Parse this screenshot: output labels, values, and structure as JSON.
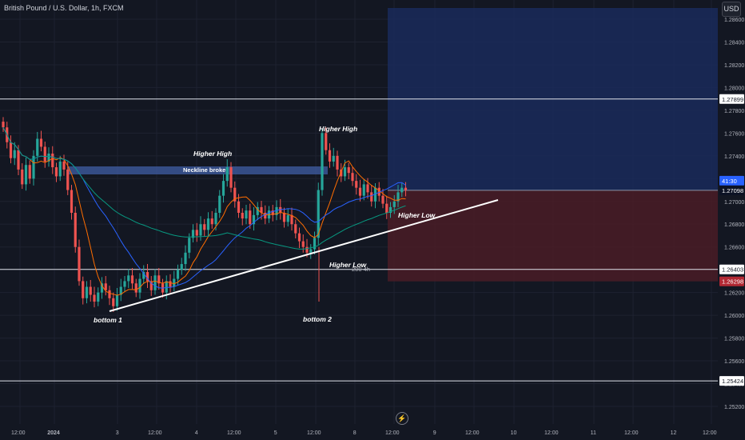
{
  "header": {
    "symbol_title": "British Pound / U.S. Dollar, 1h, FXCM"
  },
  "currency_label": "USD",
  "lightning_icon": "lightning-icon",
  "colors": {
    "background": "#131722",
    "up_candle": "#26a69a",
    "down_candle": "#ef5350",
    "ma_blue": "#2962ff",
    "ma_orange": "#ff6d00",
    "ma_teal": "#089981",
    "target_zone": "#1a2a5a",
    "stop_zone": "#4a1c26",
    "trendline": "#ffffff"
  },
  "chart_data": {
    "type": "candlestick",
    "ylim": [
      1.252,
      1.287
    ],
    "y_ticks": [
      "1.28600",
      "1.28400",
      "1.28200",
      "1.28000",
      "1.27800",
      "1.27600",
      "1.27400",
      "1.27200",
      "1.27000",
      "1.26800",
      "1.26600",
      "1.26400",
      "1.26200",
      "1.26000",
      "1.25800",
      "1.25600",
      "1.25400",
      "1.25200"
    ],
    "x_ticks": [
      "12:00",
      "2024",
      "3",
      "12:00",
      "4",
      "12:00",
      "5",
      "12:00",
      "8",
      "12:00",
      "9",
      "12:00",
      "10",
      "12:00",
      "11",
      "12:00",
      "12",
      "12:00"
    ],
    "horizontal_levels": [
      {
        "price": 1.27899,
        "label": "1.27899"
      },
      {
        "price": 1.26403,
        "label": "1.26403"
      },
      {
        "price": 1.25424,
        "label": "1.25424"
      }
    ],
    "current_price": {
      "price": 1.27098,
      "label": "1.27098",
      "countdown": "41:30"
    },
    "stop_price": {
      "price": 1.26298,
      "label": "1.26298"
    },
    "annotations": {
      "higher_high_1": "Higher High",
      "higher_high_2": "Higher High",
      "neckline": "Neckline broke",
      "higher_low_1": "Higher Low",
      "higher_low_2": "Higher Low",
      "bottom_1": "bottom 1",
      "bottom_2": "bottom 2",
      "ma_label": "200 4h"
    },
    "candles_close": [
      1.2765,
      1.2752,
      1.2738,
      1.2745,
      1.2728,
      1.2715,
      1.2732,
      1.272,
      1.274,
      1.2755,
      1.2748,
      1.2735,
      1.2742,
      1.273,
      1.2722,
      1.2735,
      1.2728,
      1.271,
      1.269,
      1.266,
      1.263,
      1.2615,
      1.2625,
      1.2618,
      1.2612,
      1.262,
      1.2628,
      1.2622,
      1.2615,
      1.2608,
      1.2618,
      1.2625,
      1.263,
      1.2635,
      1.2628,
      1.262,
      1.2632,
      1.2638,
      1.263,
      1.2622,
      1.2635,
      1.2628,
      1.262,
      1.263,
      1.2625,
      1.2632,
      1.264,
      1.2645,
      1.2655,
      1.2668,
      1.2675,
      1.267,
      1.268,
      1.2675,
      1.2685,
      1.268,
      1.269,
      1.2705,
      1.2718,
      1.273,
      1.2712,
      1.27,
      1.269,
      1.2685,
      1.2692,
      1.268,
      1.2688,
      1.2695,
      1.269,
      1.2685,
      1.2692,
      1.2688,
      1.2695,
      1.269,
      1.2682,
      1.2688,
      1.268,
      1.2672,
      1.2665,
      1.266,
      1.2655,
      1.2658,
      1.2668,
      1.271,
      1.276,
      1.2745,
      1.2735,
      1.274,
      1.2728,
      1.2722,
      1.273,
      1.2725,
      1.2718,
      1.2712,
      1.2705,
      1.2715,
      1.2708,
      1.27,
      1.2712,
      1.2705,
      1.2698,
      1.269,
      1.2695,
      1.27,
      1.2708,
      1.2712,
      1.271
    ]
  }
}
